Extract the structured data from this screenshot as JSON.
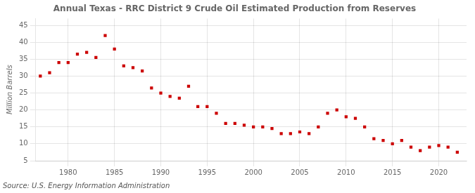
{
  "chart_data": {
    "type": "scatter",
    "title": "Annual Texas - RRC District 9 Crude Oil Estimated Production from Reserves",
    "ylabel": "Million Barrels",
    "source": "Source: U.S. Energy Information Administration",
    "x": [
      1977,
      1978,
      1979,
      1980,
      1981,
      1982,
      1983,
      1984,
      1985,
      1986,
      1987,
      1988,
      1989,
      1990,
      1991,
      1992,
      1993,
      1994,
      1995,
      1996,
      1997,
      1998,
      1999,
      2000,
      2001,
      2002,
      2003,
      2004,
      2005,
      2006,
      2007,
      2008,
      2009,
      2010,
      2011,
      2012,
      2013,
      2014,
      2015,
      2016,
      2017,
      2018,
      2019,
      2020,
      2021,
      2022
    ],
    "values": [
      30.0,
      31.0,
      34.0,
      34.0,
      36.5,
      37.0,
      35.5,
      42.0,
      38.0,
      33.0,
      32.5,
      31.5,
      26.5,
      25.0,
      24.0,
      23.5,
      27.0,
      21.0,
      21.0,
      19.0,
      16.0,
      16.0,
      15.5,
      15.0,
      15.0,
      14.5,
      13.0,
      13.0,
      13.5,
      13.0,
      15.0,
      19.0,
      20.0,
      18.0,
      17.5,
      15.0,
      11.5,
      11.0,
      10.0,
      11.0,
      9.0,
      8.0,
      9.0,
      9.5,
      9.0,
      7.5
    ],
    "color": "#cc0000",
    "marker": "square",
    "xlim": [
      1976.5,
      2023
    ],
    "xticks": [
      1980,
      1985,
      1990,
      1995,
      2000,
      2005,
      2010,
      2015,
      2020
    ],
    "ylim": [
      5,
      47
    ],
    "yticks": [
      5,
      10,
      15,
      20,
      25,
      30,
      35,
      40,
      45
    ],
    "grid": true
  }
}
